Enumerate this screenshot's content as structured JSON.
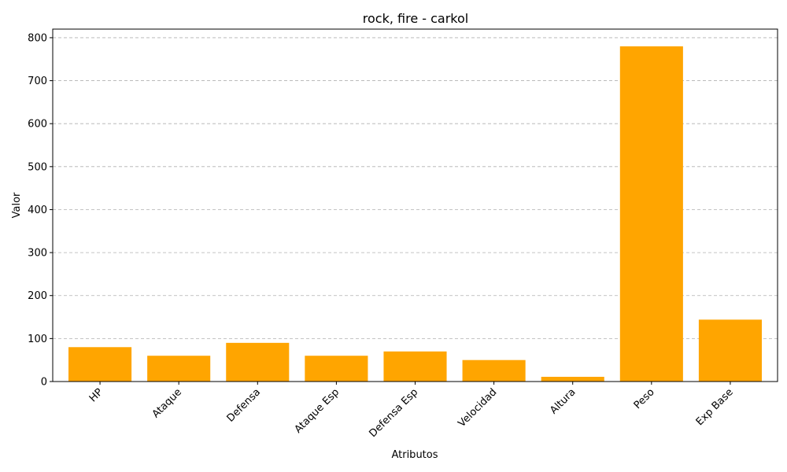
{
  "chart_data": {
    "type": "bar",
    "title": "rock, fire - carkol",
    "xlabel": "Atributos",
    "ylabel": "Valor",
    "categories": [
      "HP",
      "Ataque",
      "Defensa",
      "Ataque Esp",
      "Defensa Esp",
      "Velocidad",
      "Altura",
      "Peso",
      "Exp Base"
    ],
    "values": [
      80,
      60,
      90,
      60,
      70,
      50,
      11,
      780,
      144
    ],
    "ylim": [
      0,
      820
    ],
    "yticks": [
      0,
      100,
      200,
      300,
      400,
      500,
      600,
      700,
      800
    ],
    "grid": "y-dashed",
    "bar_color": "#FFA500",
    "legend": "none"
  }
}
